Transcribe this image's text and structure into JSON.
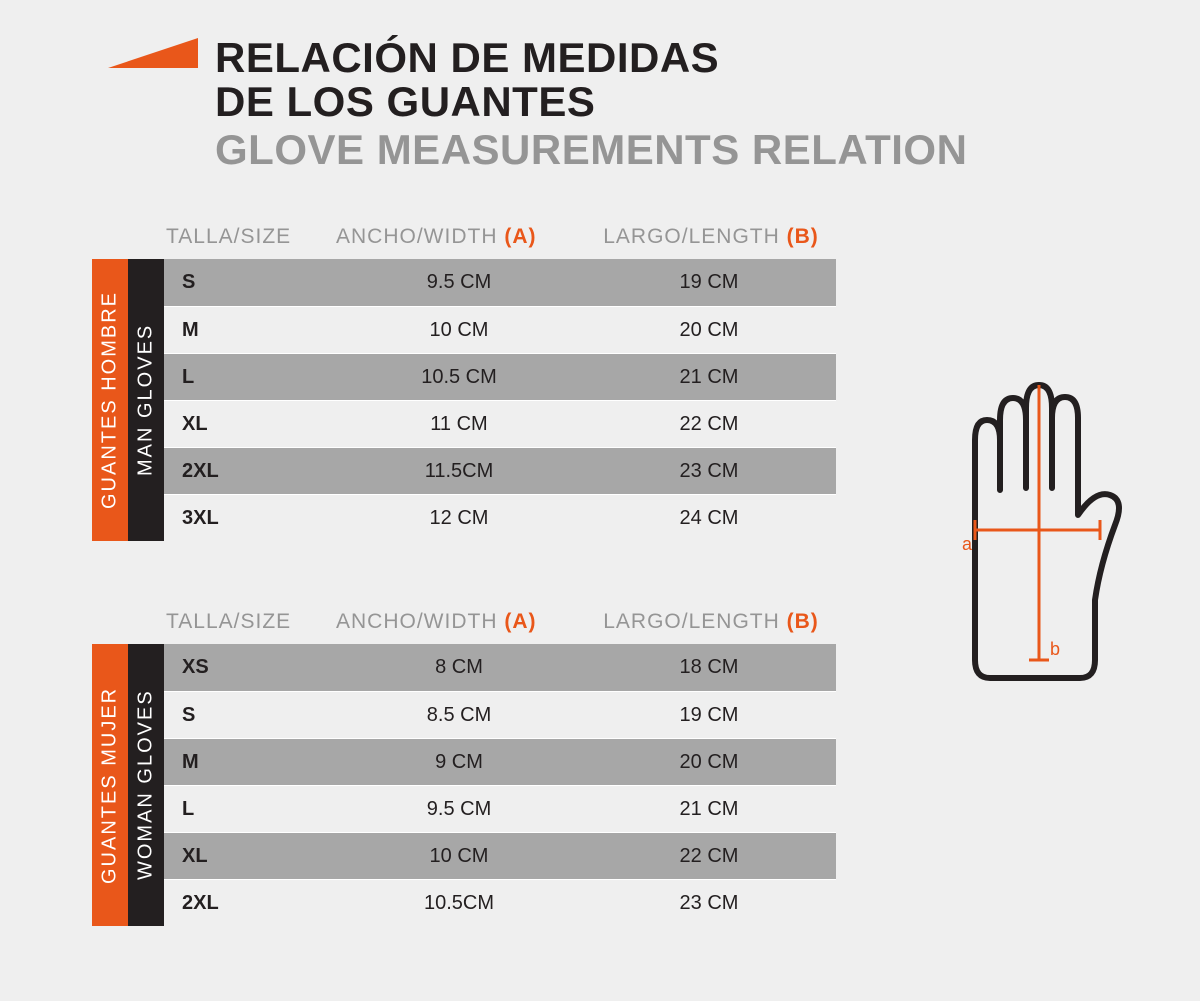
{
  "colors": {
    "accent": "#e9571a",
    "black": "#231f20",
    "grey_text": "#959595",
    "row_dark": "#a7a7a7",
    "row_light": "#efefef",
    "background": "#efefef",
    "white": "#ffffff"
  },
  "typography": {
    "title_fontsize": 42,
    "title_weight": 900,
    "header_fontsize": 21,
    "cell_fontsize": 20,
    "font_family": "Arial"
  },
  "title": {
    "line1_es": "RELACIÓN DE MEDIDAS",
    "line2_es": "DE LOS GUANTES",
    "line_en": "GLOVE MEASUREMENTS RELATION"
  },
  "column_headers": {
    "size": "TALLA/SIZE",
    "width": "ANCHO/WIDTH ",
    "width_marker": "(A)",
    "length": "LARGO/LENGTH ",
    "length_marker": "(B)"
  },
  "tables": [
    {
      "side_label_es": "GUANTES HOMBRE",
      "side_label_en": "MAN GLOVES",
      "rows": [
        {
          "size": "S",
          "width": "9.5 CM",
          "length": "19 CM"
        },
        {
          "size": "M",
          "width": "10 CM",
          "length": "20 CM"
        },
        {
          "size": "L",
          "width": "10.5 CM",
          "length": "21 CM"
        },
        {
          "size": "XL",
          "width": "11 CM",
          "length": "22 CM"
        },
        {
          "size": "2XL",
          "width": "11.5CM",
          "length": "23 CM"
        },
        {
          "size": "3XL",
          "width": "12 CM",
          "length": "24 CM"
        }
      ]
    },
    {
      "side_label_es": "GUANTES MUJER",
      "side_label_en": "WOMAN GLOVES",
      "rows": [
        {
          "size": "XS",
          "width": "8 CM",
          "length": "18 CM"
        },
        {
          "size": "S",
          "width": "8.5 CM",
          "length": "19 CM"
        },
        {
          "size": "M",
          "width": "9 CM",
          "length": "20 CM"
        },
        {
          "size": "L",
          "width": "9.5 CM",
          "length": "21 CM"
        },
        {
          "size": "XL",
          "width": "10 CM",
          "length": "22 CM"
        },
        {
          "size": "2XL",
          "width": "10.5CM",
          "length": "23 CM"
        }
      ]
    }
  ],
  "diagram": {
    "label_a": "a",
    "label_b": "b",
    "outline_color": "#231f20",
    "measure_color": "#e9571a",
    "measure_stroke_width": 3,
    "outline_stroke_width": 6
  }
}
